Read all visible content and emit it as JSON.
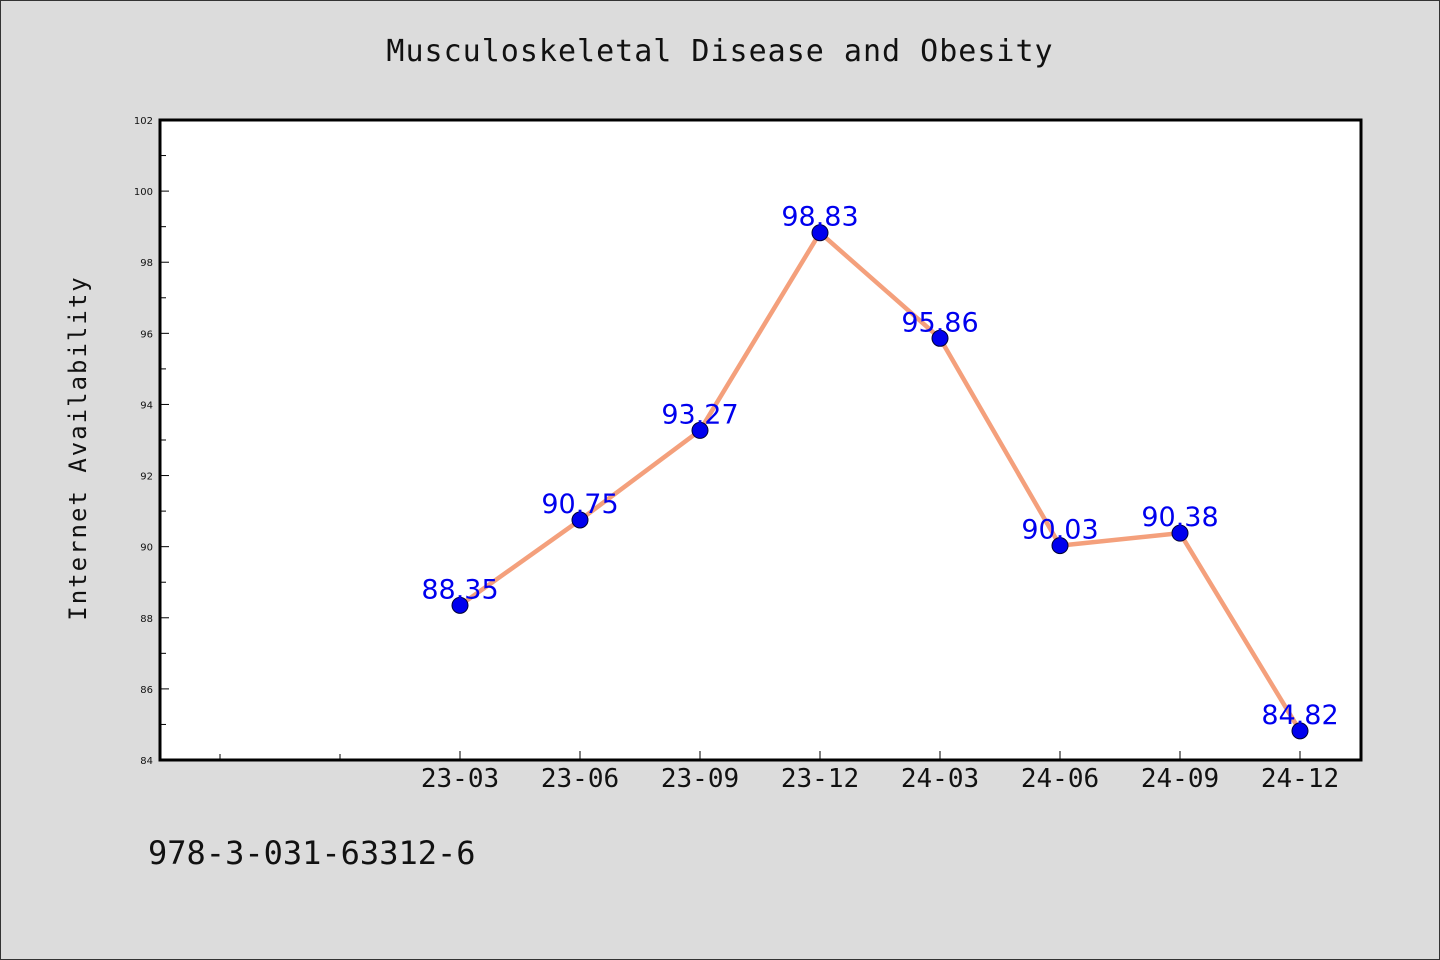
{
  "chart_data": {
    "type": "line",
    "title": "Musculoskeletal Disease and Obesity",
    "xlabel": "",
    "ylabel": "Internet Availability",
    "categories": [
      "23-03",
      "23-06",
      "23-09",
      "23-12",
      "24-03",
      "24-06",
      "24-09",
      "24-12"
    ],
    "series": [
      {
        "values": [
          88.35,
          90.75,
          93.27,
          98.83,
          95.86,
          90.03,
          90.38,
          84.82
        ],
        "labels": [
          "88.35",
          "90.75",
          "93.27",
          "98.83",
          "95.86",
          "90.03",
          "90.38",
          "84.82"
        ]
      }
    ],
    "ylim": [
      84,
      102
    ],
    "yticks": [
      "84",
      "86",
      "88",
      "90",
      "92",
      "94",
      "96",
      "98",
      "100",
      "102"
    ],
    "grid": false,
    "line_color": "#f4a07c",
    "marker_color": "#0000ee",
    "label_color": "#0000ee"
  },
  "footer": {
    "isbn": "978-3-031-63312-6"
  }
}
